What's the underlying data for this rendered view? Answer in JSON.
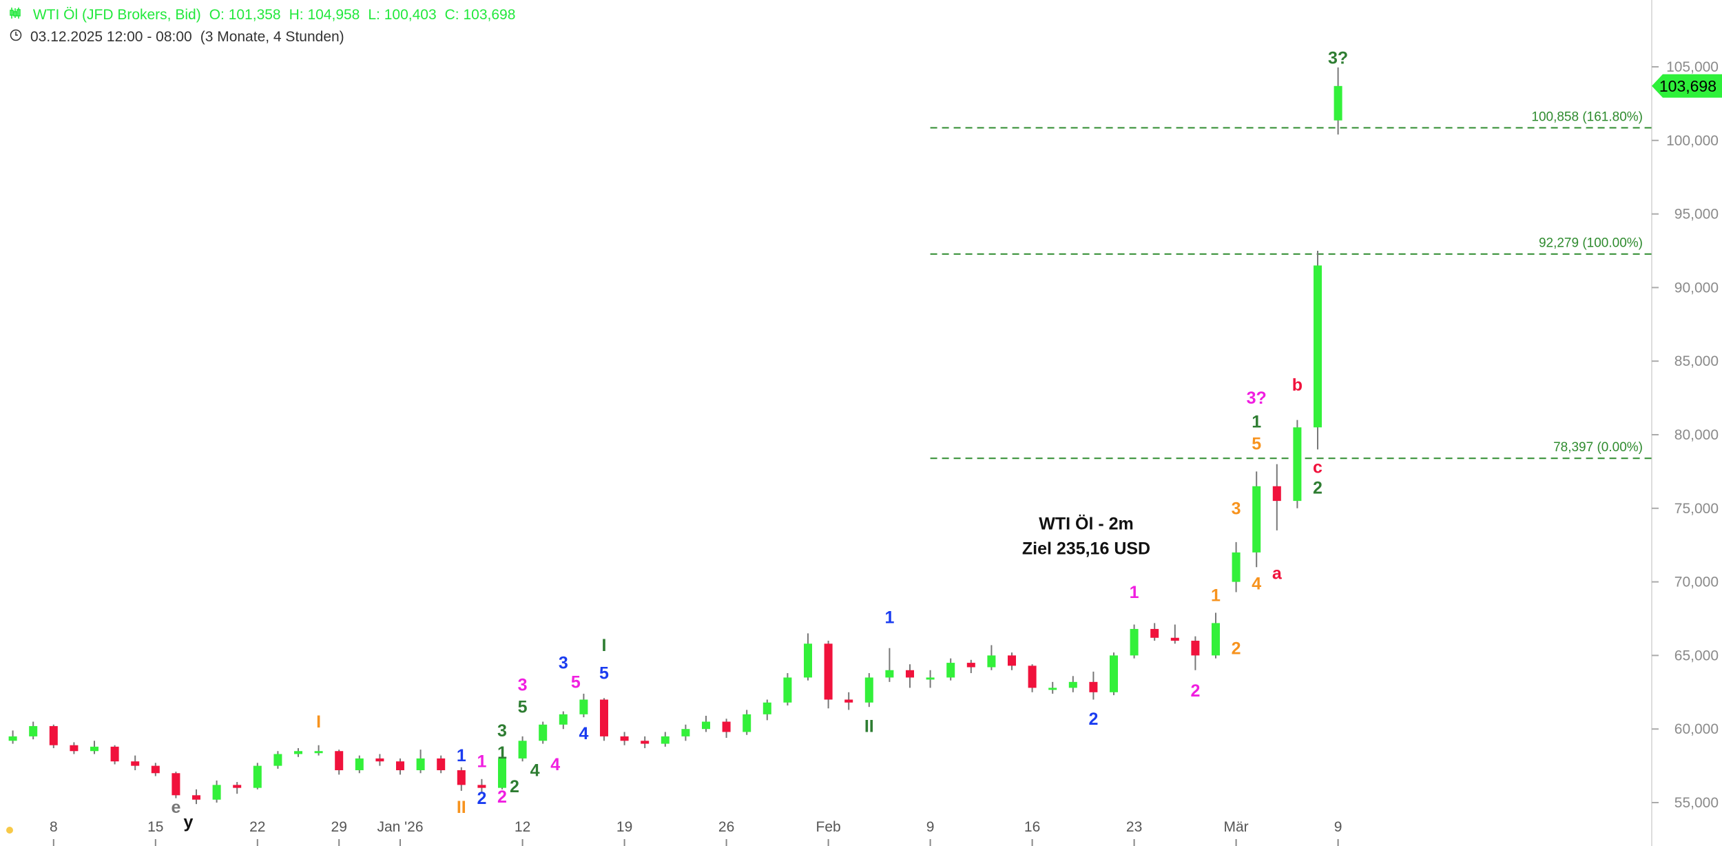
{
  "header": {
    "icon": "candlestick-icon",
    "symbol": "WTI Öl (JFD Brokers, Bid)",
    "open": "O: 101,358",
    "high": "H: 104,958",
    "low": "L: 100,403",
    "close": "C: 103,698",
    "clock_icon": "clock-icon",
    "range": "03.12.2025 12:00 - 08:00",
    "period": "(3 Monate, 4 Stunden)"
  },
  "colors": {
    "up": "#33f03a",
    "down": "#f0123c",
    "wick": "#777777",
    "header": "#22e83c",
    "fib": "#2e8b2e"
  },
  "chart_data": {
    "type": "candlestick",
    "ylim": [
      54,
      109
    ],
    "y_ticks": [
      {
        "value": 55,
        "label": "55,000"
      },
      {
        "value": 60,
        "label": "60,000"
      },
      {
        "value": 65,
        "label": "65,000"
      },
      {
        "value": 70,
        "label": "70,000"
      },
      {
        "value": 75,
        "label": "75,000"
      },
      {
        "value": 80,
        "label": "80,000"
      },
      {
        "value": 85,
        "label": "85,000"
      },
      {
        "value": 90,
        "label": "90,000"
      },
      {
        "value": 95,
        "label": "95,000"
      },
      {
        "value": 100,
        "label": "100,000"
      },
      {
        "value": 105,
        "label": "105,000"
      }
    ],
    "x_ticks": [
      {
        "date": "2025-12-08",
        "label": "8"
      },
      {
        "date": "2025-12-15",
        "label": "15"
      },
      {
        "date": "2025-12-22",
        "label": "22"
      },
      {
        "date": "2025-12-29",
        "label": "29"
      },
      {
        "date": "2026-01-02",
        "label": "Jan '26"
      },
      {
        "date": "2026-01-12",
        "label": "12"
      },
      {
        "date": "2026-01-19",
        "label": "19"
      },
      {
        "date": "2026-01-26",
        "label": "26"
      },
      {
        "date": "2026-02-02",
        "label": "Feb"
      },
      {
        "date": "2026-02-09",
        "label": "9"
      },
      {
        "date": "2026-02-16",
        "label": "16"
      },
      {
        "date": "2026-02-23",
        "label": "23"
      },
      {
        "date": "2026-03-02",
        "label": "Mär"
      },
      {
        "date": "2026-03-09",
        "label": "9"
      }
    ],
    "last_price": {
      "value": 103.698,
      "label": "103,698"
    },
    "bars": [
      [
        "2025-12-03",
        59.0,
        59.6,
        58.8,
        59.2
      ],
      [
        "2025-12-04",
        59.2,
        59.9,
        59.0,
        59.5
      ],
      [
        "2025-12-05",
        59.5,
        60.5,
        59.3,
        60.2
      ],
      [
        "2025-12-08",
        60.2,
        60.3,
        58.7,
        58.9
      ],
      [
        "2025-12-09",
        58.9,
        59.1,
        58.3,
        58.5
      ],
      [
        "2025-12-10",
        58.5,
        59.2,
        58.3,
        58.8
      ],
      [
        "2025-12-11",
        58.8,
        58.9,
        57.6,
        57.8
      ],
      [
        "2025-12-12",
        57.8,
        58.2,
        57.2,
        57.5
      ],
      [
        "2025-12-15",
        57.5,
        57.7,
        56.8,
        57.0
      ],
      [
        "2025-12-16",
        57.0,
        57.1,
        55.3,
        55.5
      ],
      [
        "2025-12-17",
        55.5,
        55.9,
        54.9,
        55.2
      ],
      [
        "2025-12-18",
        55.2,
        56.5,
        55.0,
        56.2
      ],
      [
        "2025-12-19",
        56.2,
        56.4,
        55.6,
        56.0
      ],
      [
        "2025-12-22",
        56.0,
        57.7,
        55.9,
        57.5
      ],
      [
        "2025-12-23",
        57.5,
        58.5,
        57.3,
        58.3
      ],
      [
        "2025-12-24",
        58.3,
        58.7,
        58.1,
        58.5
      ],
      [
        "2025-12-26",
        58.5,
        58.9,
        58.2,
        58.5
      ],
      [
        "2025-12-29",
        58.5,
        58.6,
        56.9,
        57.2
      ],
      [
        "2025-12-30",
        57.2,
        58.2,
        57.0,
        58.0
      ],
      [
        "2025-12-31",
        58.0,
        58.3,
        57.5,
        57.8
      ],
      [
        "2026-01-02",
        57.8,
        58.0,
        56.9,
        57.2
      ],
      [
        "2026-01-05",
        57.2,
        58.6,
        57.0,
        58.0
      ],
      [
        "2026-01-06",
        58.0,
        58.2,
        57.0,
        57.2
      ],
      [
        "2026-01-07",
        57.2,
        57.4,
        55.8,
        56.2
      ],
      [
        "2026-01-08",
        56.2,
        56.6,
        55.7,
        56.0
      ],
      [
        "2026-01-09",
        56.0,
        58.3,
        55.9,
        58.0
      ],
      [
        "2026-01-12",
        58.0,
        59.5,
        57.8,
        59.2
      ],
      [
        "2026-01-13",
        59.2,
        60.5,
        59.0,
        60.3
      ],
      [
        "2026-01-14",
        60.3,
        61.2,
        60.0,
        61.0
      ],
      [
        "2026-01-15",
        61.0,
        62.4,
        60.8,
        62.0
      ],
      [
        "2026-01-16",
        62.0,
        62.1,
        59.2,
        59.5
      ],
      [
        "2026-01-19",
        59.5,
        59.8,
        58.9,
        59.2
      ],
      [
        "2026-01-20",
        59.2,
        59.5,
        58.7,
        59.0
      ],
      [
        "2026-01-21",
        59.0,
        59.8,
        58.8,
        59.5
      ],
      [
        "2026-01-22",
        59.5,
        60.3,
        59.2,
        60.0
      ],
      [
        "2026-01-23",
        60.0,
        60.9,
        59.8,
        60.5
      ],
      [
        "2026-01-26",
        60.5,
        60.7,
        59.4,
        59.8
      ],
      [
        "2026-01-27",
        59.8,
        61.3,
        59.6,
        61.0
      ],
      [
        "2026-01-28",
        61.0,
        62.0,
        60.6,
        61.8
      ],
      [
        "2026-01-29",
        61.8,
        63.8,
        61.6,
        63.5
      ],
      [
        "2026-01-30",
        63.5,
        66.5,
        63.3,
        65.8
      ],
      [
        "2026-02-02",
        65.8,
        66.0,
        61.4,
        62.0
      ],
      [
        "2026-02-03",
        62.0,
        62.5,
        61.3,
        61.8
      ],
      [
        "2026-02-04",
        61.8,
        63.8,
        61.5,
        63.5
      ],
      [
        "2026-02-05",
        63.5,
        65.5,
        63.2,
        64.0
      ],
      [
        "2026-02-06",
        64.0,
        64.4,
        62.8,
        63.5
      ],
      [
        "2026-02-09",
        63.5,
        64.0,
        62.8,
        63.5
      ],
      [
        "2026-02-10",
        63.5,
        64.8,
        63.3,
        64.5
      ],
      [
        "2026-02-11",
        64.5,
        64.7,
        63.8,
        64.2
      ],
      [
        "2026-02-12",
        64.2,
        65.7,
        64.0,
        65.0
      ],
      [
        "2026-02-13",
        65.0,
        65.2,
        64.0,
        64.3
      ],
      [
        "2026-02-16",
        64.3,
        64.4,
        62.5,
        62.8
      ],
      [
        "2026-02-17",
        62.8,
        63.2,
        62.4,
        62.8
      ],
      [
        "2026-02-18",
        62.8,
        63.6,
        62.5,
        63.2
      ],
      [
        "2026-02-19",
        63.2,
        63.9,
        62.0,
        62.5
      ],
      [
        "2026-02-20",
        62.5,
        65.2,
        62.3,
        65.0
      ],
      [
        "2026-02-23",
        65.0,
        67.1,
        64.8,
        66.8
      ],
      [
        "2026-02-24",
        66.8,
        67.2,
        66.0,
        66.2
      ],
      [
        "2026-02-25",
        66.2,
        67.1,
        65.8,
        66.0
      ],
      [
        "2026-02-26",
        66.0,
        66.3,
        64.0,
        65.0
      ],
      [
        "2026-02-27",
        65.0,
        67.9,
        64.8,
        67.2
      ],
      [
        "2026-03-02",
        70.0,
        72.7,
        69.3,
        72.0
      ],
      [
        "2026-03-03",
        72.0,
        77.5,
        71.0,
        76.5
      ],
      [
        "2026-03-04",
        76.5,
        78.0,
        73.5,
        75.5
      ],
      [
        "2026-03-05",
        75.5,
        81.0,
        75.0,
        80.5
      ],
      [
        "2026-03-06",
        80.5,
        92.5,
        79.0,
        91.5
      ],
      [
        "2026-03-09",
        101.358,
        104.958,
        100.403,
        103.698
      ]
    ],
    "fib_levels": [
      {
        "value": 100.858,
        "label": "100,858 (161.80%)",
        "from": "2026-02-09"
      },
      {
        "value": 92.279,
        "label": "92,279 (100.00%)",
        "from": "2026-02-09"
      },
      {
        "value": 78.397,
        "label": "78,397 (0.00%)",
        "from": "2026-02-09"
      }
    ],
    "annotations": [
      {
        "text": "I",
        "date": "2025-12-26",
        "price": 60.1,
        "color": "#f7931e"
      },
      {
        "text": "e",
        "date": "2025-12-16",
        "price": 54.3,
        "color": "#777777"
      },
      {
        "text": "y",
        "date": "2025-12-16",
        "price": 53.3,
        "color": "#111111"
      },
      {
        "text": "II",
        "date": "2026-01-07",
        "price": 54.3,
        "color": "#f7931e"
      },
      {
        "text": "1",
        "date": "2026-01-07",
        "price": 57.8,
        "color": "#1a3cf0"
      },
      {
        "text": "2",
        "date": "2026-01-08",
        "price": 54.9,
        "color": "#1a3cf0"
      },
      {
        "text": "1",
        "date": "2026-01-08",
        "price": 57.4,
        "color": "#f01ee0"
      },
      {
        "text": "2",
        "date": "2026-01-09",
        "price": 55.0,
        "color": "#f01ee0"
      },
      {
        "text": "1",
        "date": "2026-01-09",
        "price": 58.0,
        "color": "#2e7d32"
      },
      {
        "text": "2",
        "date": "2026-01-09",
        "price": 55.7,
        "color": "#2e7d32"
      },
      {
        "text": "3",
        "date": "2026-01-09",
        "price": 59.5,
        "color": "#2e7d32"
      },
      {
        "text": "4",
        "date": "2026-01-12",
        "price": 56.8,
        "color": "#2e7d32"
      },
      {
        "text": "5",
        "date": "2026-01-12",
        "price": 61.1,
        "color": "#2e7d32"
      },
      {
        "text": "3",
        "date": "2026-01-12",
        "price": 62.6,
        "color": "#f01ee0"
      },
      {
        "text": "4",
        "date": "2026-01-13",
        "price": 57.2,
        "color": "#f01ee0"
      },
      {
        "text": "3",
        "date": "2026-01-14",
        "price": 64.1,
        "color": "#1a3cf0"
      },
      {
        "text": "5",
        "date": "2026-01-14",
        "price": 62.8,
        "color": "#f01ee0"
      },
      {
        "text": "4",
        "date": "2026-01-15",
        "price": 59.3,
        "color": "#1a3cf0"
      },
      {
        "text": "5",
        "date": "2026-01-16",
        "price": 63.4,
        "color": "#1a3cf0"
      },
      {
        "text": "I",
        "date": "2026-01-16",
        "price": 65.3,
        "color": "#2e7d32"
      },
      {
        "text": "II",
        "date": "2026-02-04",
        "price": 59.8,
        "color": "#2e7d32"
      },
      {
        "text": "1",
        "date": "2026-02-05",
        "price": 67.2,
        "color": "#1a3cf0"
      },
      {
        "text": "2",
        "date": "2026-02-19",
        "price": 60.3,
        "color": "#1a3cf0"
      },
      {
        "text": "1",
        "date": "2026-02-23",
        "price": 68.9,
        "color": "#f01ee0"
      },
      {
        "text": "2",
        "date": "2026-02-26",
        "price": 62.2,
        "color": "#f01ee0"
      },
      {
        "text": "1",
        "date": "2026-02-27",
        "price": 68.7,
        "color": "#f7931e"
      },
      {
        "text": "2",
        "date": "2026-03-02",
        "price": 65.1,
        "color": "#f7931e"
      },
      {
        "text": "3",
        "date": "2026-03-02",
        "price": 74.6,
        "color": "#f7931e"
      },
      {
        "text": "4",
        "date": "2026-03-03",
        "price": 69.5,
        "color": "#f7931e"
      },
      {
        "text": "a",
        "date": "2026-03-04",
        "price": 70.2,
        "color": "#f0123c"
      },
      {
        "text": "5",
        "date": "2026-03-03",
        "price": 79.0,
        "color": "#f7931e"
      },
      {
        "text": "1",
        "date": "2026-03-03",
        "price": 80.5,
        "color": "#2e7d32"
      },
      {
        "text": "3?",
        "date": "2026-03-03",
        "price": 82.1,
        "color": "#f01ee0"
      },
      {
        "text": "b",
        "date": "2026-03-05",
        "price": 83.0,
        "color": "#f0123c"
      },
      {
        "text": "c",
        "date": "2026-03-06",
        "price": 77.4,
        "color": "#f0123c"
      },
      {
        "text": "2",
        "date": "2026-03-06",
        "price": 76.0,
        "color": "#2e7d32"
      },
      {
        "text": "3?",
        "date": "2026-03-09",
        "price": 105.2,
        "color": "#2e7d32"
      }
    ],
    "note": {
      "line1": "WTI Öl - 2m",
      "line2": "Ziel 235,16 USD",
      "date": "2026-02-20",
      "price": 73.0
    }
  }
}
